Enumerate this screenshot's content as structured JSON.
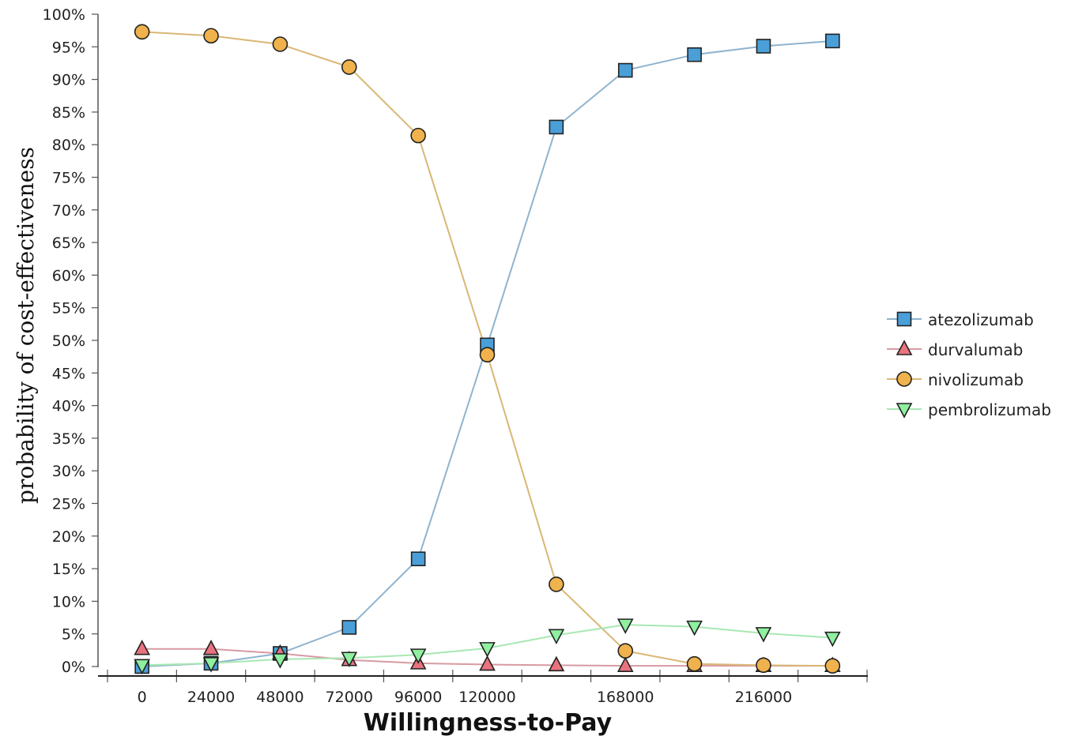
{
  "chart_data": {
    "type": "line",
    "title": "",
    "xlabel": "Willingness-to-Pay",
    "ylabel": "probability of cost-effectiveness",
    "x": [
      0,
      24000,
      48000,
      72000,
      96000,
      120000,
      144000,
      168000,
      192000,
      216000,
      240000
    ],
    "x_tick_labels": [
      {
        "value": 0,
        "label": "0"
      },
      {
        "value": 24000,
        "label": "24000"
      },
      {
        "value": 48000,
        "label": "48000"
      },
      {
        "value": 72000,
        "label": "72000"
      },
      {
        "value": 96000,
        "label": "96000"
      },
      {
        "value": 120000,
        "label": "120000"
      },
      {
        "value": 168000,
        "label": "168000"
      },
      {
        "value": 216000,
        "label": "216000"
      }
    ],
    "y_ticks": [
      0,
      5,
      10,
      15,
      20,
      25,
      30,
      35,
      40,
      45,
      50,
      55,
      60,
      65,
      70,
      75,
      80,
      85,
      90,
      95,
      100
    ],
    "y_tick_suffix": "%",
    "xlim": [
      -12000,
      252000
    ],
    "ylim": [
      0,
      100
    ],
    "grid": false,
    "legend_position": "right",
    "series": [
      {
        "name": "atezolizumab",
        "marker": "square",
        "color": "#4a9fd8",
        "line_color": "#8fb4cf",
        "values": [
          0,
          0.5,
          2,
          6,
          16.5,
          49.3,
          82.7,
          91.4,
          93.8,
          95.1,
          95.9
        ]
      },
      {
        "name": "durvalumab",
        "marker": "triangle-up",
        "color": "#e8737f",
        "line_color": "#d89aa2",
        "values": [
          2.7,
          2.7,
          2,
          1,
          0.5,
          0.3,
          0.2,
          0.1,
          0.1,
          0.1,
          0.1
        ]
      },
      {
        "name": "nivolizumab",
        "marker": "circle",
        "color": "#f0b24c",
        "line_color": "#d9b775",
        "values": [
          97.3,
          96.7,
          95.4,
          91.9,
          81.4,
          47.8,
          12.6,
          2.4,
          0.4,
          0.2,
          0.1
        ]
      },
      {
        "name": "pembrolizumab",
        "marker": "triangle-down",
        "color": "#8ff0a0",
        "line_color": "#a8e8b3",
        "values": [
          0.2,
          0.5,
          1.1,
          1.3,
          1.8,
          2.8,
          4.8,
          6.4,
          6.1,
          5.1,
          4.4
        ]
      }
    ]
  }
}
